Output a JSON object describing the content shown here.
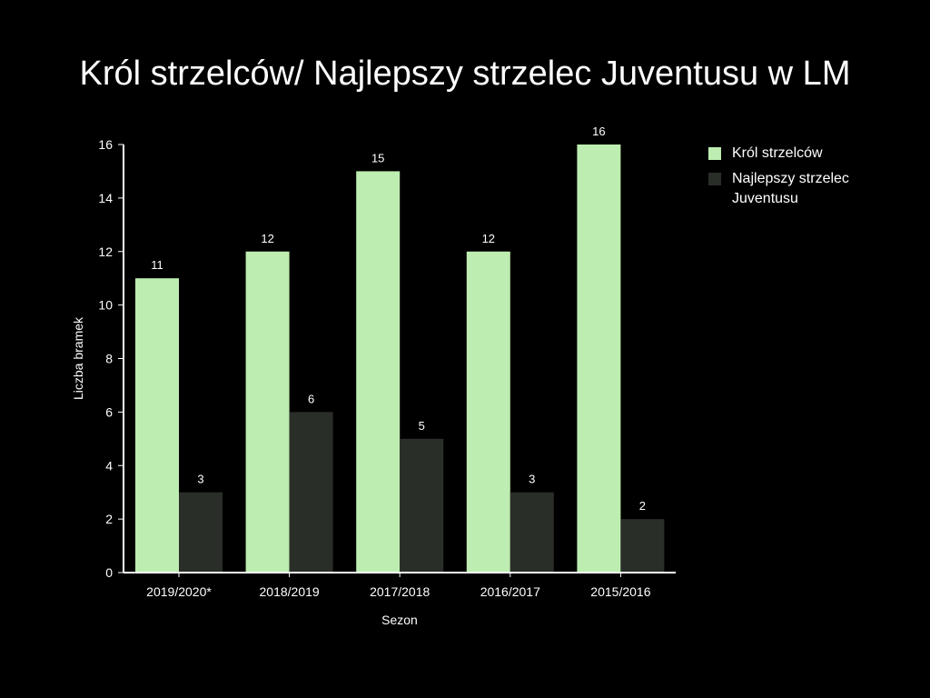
{
  "chart_data": {
    "type": "bar",
    "title": "Król strzelców/ Najlepszy strzelec Juventusu w LM",
    "xlabel": "Sezon",
    "ylabel": "Liczba bramek",
    "ylim": [
      0,
      16
    ],
    "yticks": [
      0,
      2,
      4,
      6,
      8,
      10,
      12,
      14,
      16
    ],
    "categories": [
      "2019/2020*",
      "2018/2019",
      "2017/2018",
      "2016/2017",
      "2015/2016"
    ],
    "series": [
      {
        "name": "Król strzelców",
        "values": [
          11,
          12,
          15,
          12,
          16
        ],
        "color": "#bdedb0"
      },
      {
        "name": "Najlepszy strzelec Juventusu",
        "values": [
          3,
          6,
          5,
          3,
          2
        ],
        "color": "#2a2e29"
      }
    ],
    "legend_position": "top-right",
    "grid": false,
    "data_labels": true,
    "background": "#000000",
    "text_color": "#ffffff"
  }
}
